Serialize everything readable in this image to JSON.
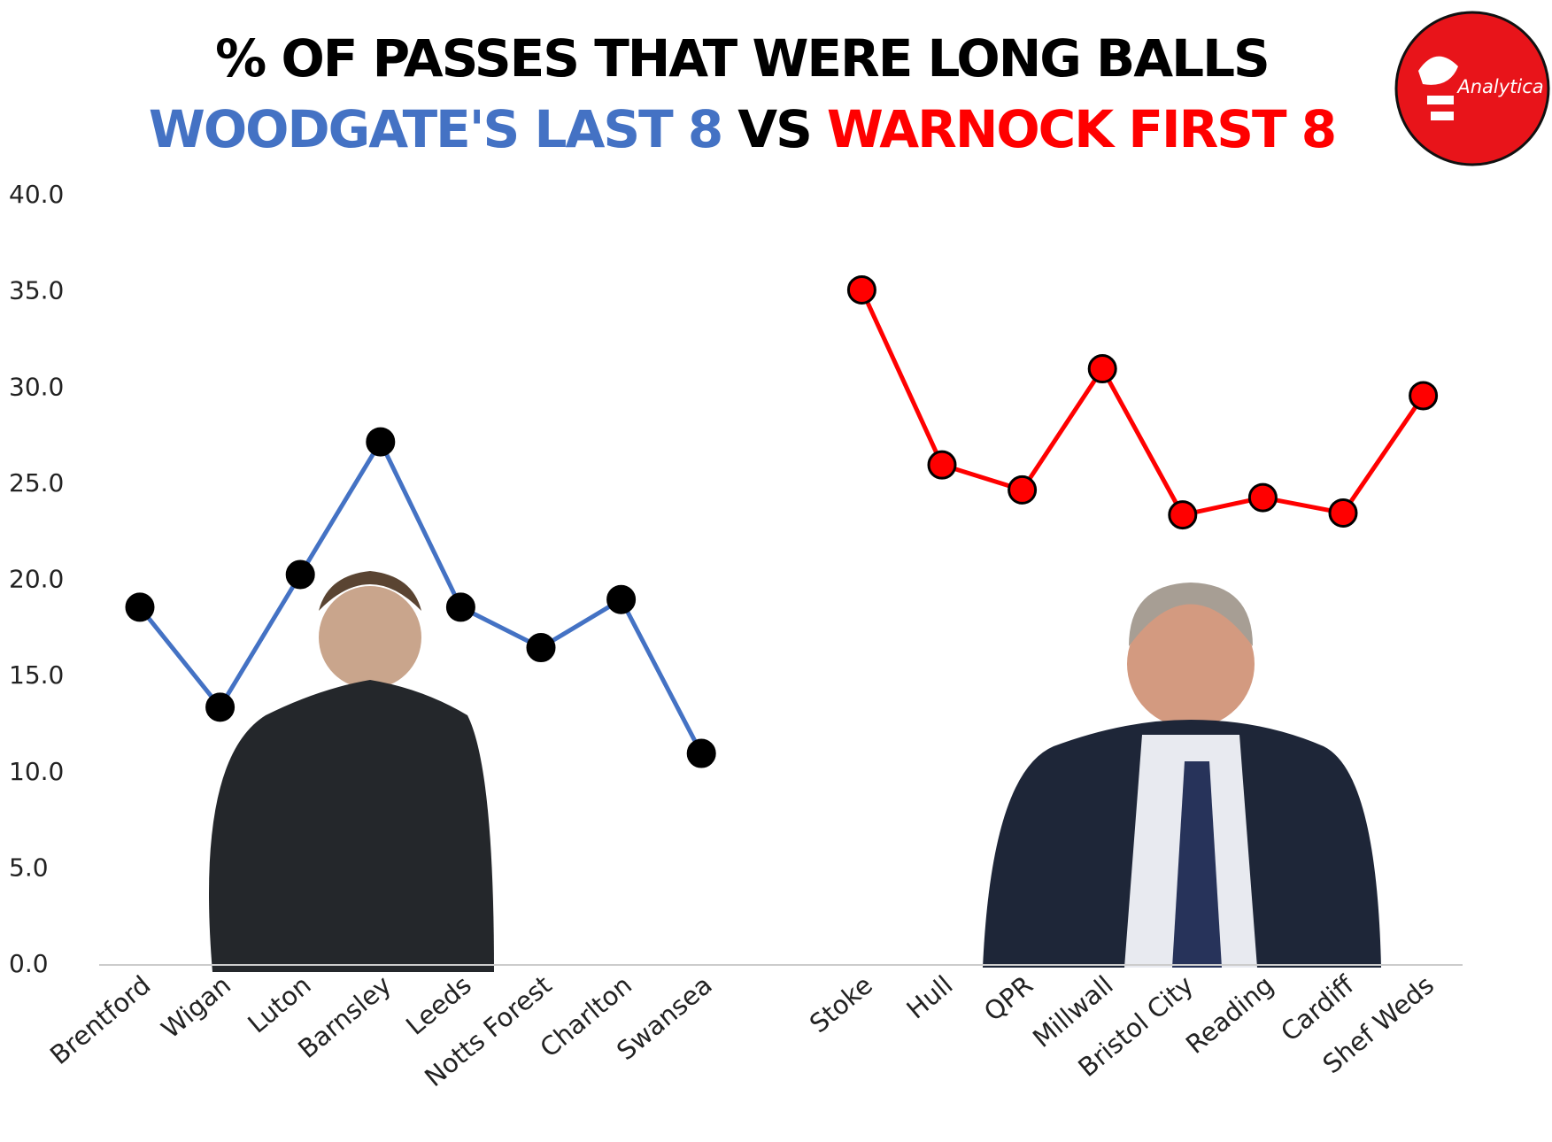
{
  "chart_data": {
    "type": "line",
    "title": "% OF PASSES THAT WERE LONG BALLS",
    "subtitle": {
      "left": "WOODGATE'S LAST 8",
      "middle": "VS",
      "right": "WARNOCK FIRST 8"
    },
    "logo": "Analytica",
    "categories": [
      "Brentford",
      "Wigan",
      "Luton",
      "Barnsley",
      "Leeds",
      "Notts Forest",
      "Charlton",
      "Swansea",
      null,
      "Stoke",
      "Hull",
      "QPR",
      "Millwall",
      "Bristol City",
      "Reading",
      "Cardiff",
      "Shef Weds"
    ],
    "series": [
      {
        "name": "WOODGATE'S LAST 8",
        "color": "#4472c4",
        "marker_color": "#000000",
        "values": [
          18.6,
          13.4,
          20.3,
          27.2,
          18.6,
          16.5,
          19.0,
          11.0,
          null,
          null,
          null,
          null,
          null,
          null,
          null,
          null,
          null
        ]
      },
      {
        "name": "WARNOCK FIRST 8",
        "color": "#ff0000",
        "marker_color": "#ff0000",
        "values": [
          null,
          null,
          null,
          null,
          null,
          null,
          null,
          null,
          null,
          35.1,
          26.0,
          24.7,
          31.0,
          23.4,
          24.3,
          23.5,
          29.6
        ]
      }
    ],
    "ylim": [
      0,
      40
    ],
    "yticks": [
      {
        "value": 0,
        "label": "0.0"
      },
      {
        "value": 5,
        "label": "5.0"
      },
      {
        "value": 10,
        "label": "10.0"
      },
      {
        "value": 15,
        "label": "15.0"
      },
      {
        "value": 20,
        "label": "20.0"
      },
      {
        "value": 25,
        "label": "25.0"
      },
      {
        "value": 30,
        "label": "30.0"
      },
      {
        "value": 35,
        "label": "35.0"
      },
      {
        "value": 40,
        "label": "40.0"
      }
    ],
    "grid": false
  }
}
